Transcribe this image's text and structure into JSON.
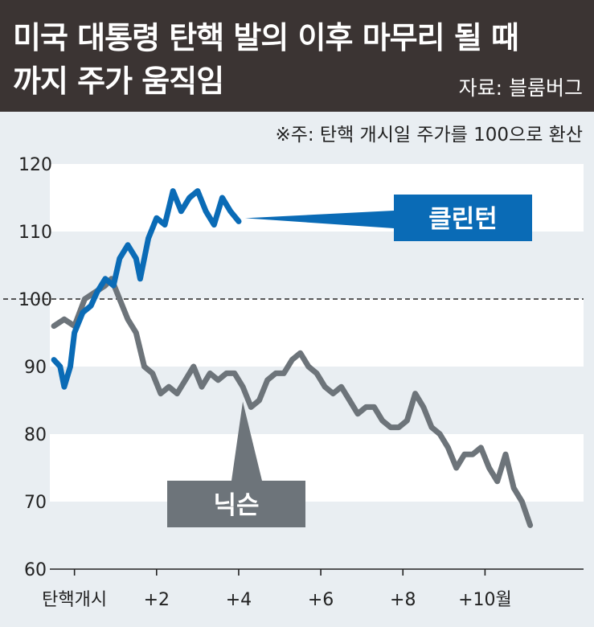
{
  "header": {
    "title_line1": "미국 대통령 탄핵 발의 이후 마무리 될 때",
    "title_line2": "까지 주가 움직임",
    "source": "자료: 블룸버그"
  },
  "note": "※주: 탄핵 개시일 주가를 100으로 환산",
  "colors": {
    "clinton": "#0a6bb6",
    "nixon": "#6d747a",
    "header_bg": "#3b3433"
  },
  "chart_data": {
    "type": "line",
    "title": "미국 대통령 탄핵 발의 이후 마무리 될 때 까지 주가 움직임",
    "xlabel": "",
    "ylabel": "",
    "x_unit": "months after impeachment start",
    "xlim": [
      -0.6,
      12.4
    ],
    "ylim": [
      60,
      120
    ],
    "x_ticks": [
      0,
      2,
      4,
      6,
      8,
      10
    ],
    "x_tick_labels": [
      "탄핵개시",
      "+2",
      "+4",
      "+6",
      "+8",
      "+10월"
    ],
    "y_ticks": [
      120,
      110,
      100,
      90,
      80,
      70,
      60
    ],
    "y_tick_labels": [
      "120",
      "110",
      "100",
      "90",
      "80",
      "70",
      "60"
    ],
    "reference_line": 100,
    "grid": "horizontal bands",
    "series": [
      {
        "name": "클린턴",
        "color": "#0a6bb6",
        "points": [
          [
            -0.5,
            91
          ],
          [
            -0.35,
            90
          ],
          [
            -0.25,
            87
          ],
          [
            -0.1,
            90
          ],
          [
            0,
            95
          ],
          [
            0.2,
            98
          ],
          [
            0.4,
            99
          ],
          [
            0.55,
            101
          ],
          [
            0.75,
            103
          ],
          [
            0.95,
            102
          ],
          [
            1.1,
            106
          ],
          [
            1.3,
            108
          ],
          [
            1.5,
            106
          ],
          [
            1.6,
            103
          ],
          [
            1.8,
            109
          ],
          [
            2.0,
            112
          ],
          [
            2.2,
            111
          ],
          [
            2.4,
            116
          ],
          [
            2.6,
            113
          ],
          [
            2.8,
            115
          ],
          [
            3.0,
            116
          ],
          [
            3.2,
            113
          ],
          [
            3.4,
            111
          ],
          [
            3.6,
            115
          ],
          [
            3.8,
            113
          ],
          [
            4.0,
            111.5
          ]
        ]
      },
      {
        "name": "닉슨",
        "color": "#6d747a",
        "points": [
          [
            -0.5,
            96
          ],
          [
            -0.25,
            97
          ],
          [
            0,
            96
          ],
          [
            0.25,
            100
          ],
          [
            0.5,
            101
          ],
          [
            0.75,
            102
          ],
          [
            0.9,
            103
          ],
          [
            1.1,
            100
          ],
          [
            1.3,
            97
          ],
          [
            1.5,
            95
          ],
          [
            1.7,
            90
          ],
          [
            1.9,
            89
          ],
          [
            2.1,
            86
          ],
          [
            2.3,
            87
          ],
          [
            2.5,
            86
          ],
          [
            2.7,
            88
          ],
          [
            2.9,
            90
          ],
          [
            3.1,
            87
          ],
          [
            3.3,
            89
          ],
          [
            3.5,
            88
          ],
          [
            3.7,
            89
          ],
          [
            3.9,
            89
          ],
          [
            4.1,
            87
          ],
          [
            4.3,
            84
          ],
          [
            4.5,
            85
          ],
          [
            4.7,
            88
          ],
          [
            4.9,
            89
          ],
          [
            5.1,
            89
          ],
          [
            5.3,
            91
          ],
          [
            5.5,
            92
          ],
          [
            5.7,
            90
          ],
          [
            5.9,
            89
          ],
          [
            6.1,
            87
          ],
          [
            6.3,
            86
          ],
          [
            6.5,
            87
          ],
          [
            6.7,
            85
          ],
          [
            6.9,
            83
          ],
          [
            7.1,
            84
          ],
          [
            7.3,
            84
          ],
          [
            7.5,
            82
          ],
          [
            7.7,
            81
          ],
          [
            7.9,
            81
          ],
          [
            8.1,
            82
          ],
          [
            8.3,
            86
          ],
          [
            8.5,
            84
          ],
          [
            8.7,
            81
          ],
          [
            8.9,
            80
          ],
          [
            9.1,
            78
          ],
          [
            9.3,
            75
          ],
          [
            9.5,
            77
          ],
          [
            9.7,
            77
          ],
          [
            9.9,
            78
          ],
          [
            10.1,
            75
          ],
          [
            10.3,
            73
          ],
          [
            10.5,
            77
          ],
          [
            10.7,
            72
          ],
          [
            10.9,
            70
          ],
          [
            11.1,
            66.5
          ]
        ]
      }
    ],
    "annotations": [
      {
        "label": "클린턴",
        "series": "클린턴"
      },
      {
        "label": "닉슨",
        "series": "닉슨"
      }
    ]
  }
}
